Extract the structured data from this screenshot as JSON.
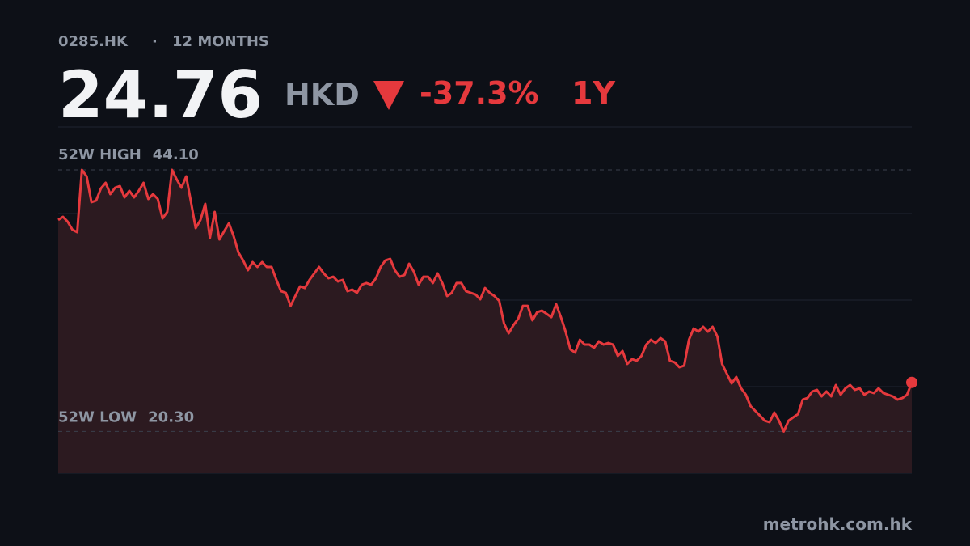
{
  "header": {
    "ticker": "0285.HK",
    "separator": "·",
    "period": "12 MONTHS",
    "price": 24.76,
    "currency": "HKD",
    "change": {
      "value": -37.3,
      "label": "-37.3%"
    },
    "range": "1Y"
  },
  "chart_data": {
    "type": "area",
    "color": "#e5393d",
    "fill": "#2c1a20",
    "grid": true,
    "ylim": [
      16.5,
      48.0
    ],
    "high_label": "52W HIGH",
    "high": {
      "value": 44.1,
      "label": "44.10"
    },
    "low_label": "52W LOW",
    "low": {
      "value": 20.3,
      "label": "20.30"
    },
    "values": [
      39.54,
      39.83,
      39.39,
      38.65,
      38.43,
      44.1,
      43.51,
      41.16,
      41.3,
      42.41,
      42.92,
      41.89,
      42.48,
      42.63,
      41.6,
      42.19,
      41.6,
      42.19,
      42.92,
      41.45,
      41.89,
      41.45,
      39.68,
      40.27,
      44.1,
      43.22,
      42.48,
      43.51,
      41.16,
      38.8,
      39.54,
      41.01,
      37.92,
      40.27,
      37.77,
      38.51,
      39.24,
      38.06,
      36.59,
      35.86,
      34.97,
      35.71,
      35.27,
      35.71,
      35.27,
      35.27,
      34.09,
      33.06,
      32.91,
      31.73,
      32.62,
      33.5,
      33.35,
      34.09,
      34.68,
      35.27,
      34.68,
      34.24,
      34.38,
      33.94,
      34.09,
      33.06,
      33.21,
      32.91,
      33.65,
      33.8,
      33.65,
      34.24,
      35.27,
      35.86,
      36.0,
      34.97,
      34.38,
      34.53,
      35.56,
      34.83,
      33.65,
      34.38,
      34.38,
      33.8,
      34.68,
      33.8,
      32.62,
      32.91,
      33.8,
      33.8,
      33.06,
      32.91,
      32.76,
      32.32,
      33.35,
      32.91,
      32.62,
      32.18,
      30.12,
      29.23,
      29.97,
      30.56,
      31.73,
      31.73,
      30.41,
      31.15,
      31.29,
      31.0,
      30.7,
      31.88,
      30.7,
      29.38,
      27.76,
      27.47,
      28.64,
      28.2,
      28.2,
      27.91,
      28.5,
      28.2,
      28.35,
      28.2,
      27.17,
      27.61,
      26.44,
      26.88,
      26.73,
      27.17,
      28.2,
      28.64,
      28.35,
      28.79,
      28.5,
      26.73,
      26.58,
      26.14,
      26.29,
      28.64,
      29.67,
      29.38,
      29.82,
      29.38,
      29.82,
      28.94,
      26.44,
      25.55,
      24.67,
      25.26,
      24.23,
      23.64,
      22.61,
      22.17,
      21.72,
      21.28,
      21.14,
      22.02,
      21.28,
      20.3,
      21.28,
      21.58,
      21.87,
      23.2,
      23.34,
      23.93,
      24.08,
      23.49,
      23.93,
      23.49,
      24.52,
      23.64,
      24.23,
      24.52,
      24.08,
      24.23,
      23.64,
      23.93,
      23.79,
      24.23,
      23.79,
      23.64,
      23.49,
      23.2,
      23.34,
      23.64,
      24.76
    ]
  },
  "source": "metrohk.com.hk"
}
